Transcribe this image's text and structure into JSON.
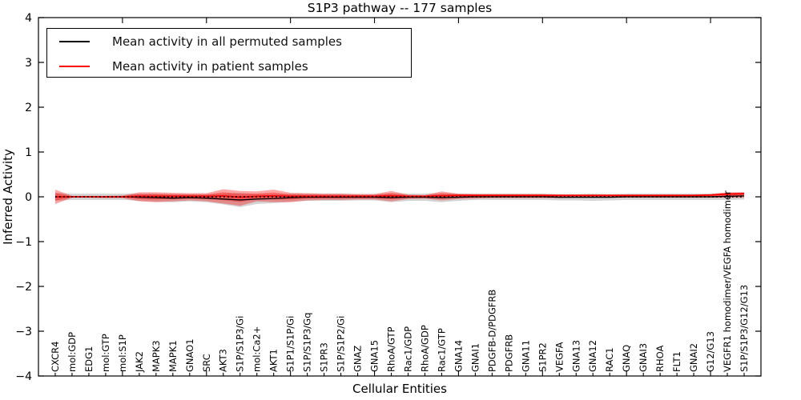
{
  "title": "S1P3 pathway -- 177 samples",
  "legend": {
    "entries": [
      {
        "label": "Mean activity in all permuted samples",
        "color": "#000000"
      },
      {
        "label": "Mean activity in patient samples",
        "color": "#ff0000"
      }
    ],
    "position": "upper left"
  },
  "colors": {
    "permuted_line": "#000000",
    "patient_line": "#ff0000",
    "patient_band": "#ff0000",
    "permuted_band": "#808080",
    "axis": "#000000",
    "background": "#ffffff"
  },
  "chart_data": {
    "type": "line",
    "title": "S1P3 pathway -- 177 samples",
    "xlabel": "Cellular Entities",
    "ylabel": "Inferred Activity",
    "ylim": [
      -4,
      4
    ],
    "yticks": [
      4,
      3,
      2,
      1,
      0,
      -1,
      -2,
      -3,
      -4
    ],
    "x_major_tick_step": 5,
    "grid": false,
    "baseline": {
      "value": 0,
      "style": "dotted",
      "color": "#000000"
    },
    "categories": [
      "CXCR4",
      "mol:GDP",
      "EDG1",
      "mol:GTP",
      "mol:S1P",
      "JAK2",
      "MAPK3",
      "MAPK1",
      "GNAO1",
      "SRC",
      "AKT3",
      "S1P/S1P3/Gi",
      "mol:Ca2+",
      "AKT1",
      "S1P1/S1P/Gi",
      "S1P/S1P3/Gq",
      "S1PR3",
      "S1P/S1P2/Gi",
      "GNAZ",
      "GNA15",
      "RhoA/GTP",
      "Rac1/GDP",
      "RhoA/GDP",
      "Rac1/GTP",
      "GNA14",
      "GNAI1",
      "PDGFB-D/PDGFRB",
      "PDGFRB",
      "GNA11",
      "S1PR2",
      "VEGFA",
      "GNA13",
      "GNA12",
      "RAC1",
      "GNAQ",
      "GNAI3",
      "RHOA",
      "FLT1",
      "GNAI2",
      "G12/G13",
      "VEGFR1 homodimer/VEGFA homodimer",
      "S1P/S1P3/G12/G13"
    ],
    "series": [
      {
        "name": "Mean activity in all permuted samples",
        "color": "#000000",
        "style": "solid",
        "values": [
          0,
          0,
          0,
          0,
          0,
          -0.01,
          -0.02,
          -0.03,
          -0.02,
          -0.03,
          -0.05,
          -0.07,
          -0.05,
          -0.04,
          -0.02,
          -0.01,
          -0.01,
          -0.01,
          -0.01,
          -0.01,
          -0.02,
          -0.01,
          -0.01,
          -0.02,
          -0.01,
          0,
          0,
          0,
          0,
          0,
          -0.01,
          -0.01,
          -0.01,
          -0.01,
          0,
          0,
          0,
          0,
          0,
          0,
          0.01,
          0.02
        ]
      },
      {
        "name": "Mean activity in patient samples",
        "color": "#ff0000",
        "style": "solid",
        "values": [
          0,
          0,
          0,
          0,
          0,
          0.01,
          0.01,
          0.01,
          0.01,
          0.01,
          0.02,
          -0.01,
          0.01,
          0.02,
          0.01,
          0.01,
          0.01,
          0.01,
          0.01,
          0.01,
          0.02,
          0.01,
          0.01,
          0.02,
          0.03,
          0.03,
          0.03,
          0.03,
          0.03,
          0.03,
          0.03,
          0.03,
          0.03,
          0.03,
          0.03,
          0.03,
          0.03,
          0.03,
          0.03,
          0.04,
          0.06,
          0.07
        ]
      }
    ],
    "bands": [
      {
        "name": "permuted activity range",
        "color": "#808080",
        "opacity": 0.35,
        "center_series": 0,
        "half_width": [
          0.09,
          0.07,
          0.07,
          0.07,
          0.07,
          0.08,
          0.09,
          0.09,
          0.08,
          0.09,
          0.12,
          0.16,
          0.11,
          0.1,
          0.09,
          0.08,
          0.08,
          0.08,
          0.07,
          0.07,
          0.1,
          0.08,
          0.08,
          0.1,
          0.08,
          0.07,
          0.07,
          0.07,
          0.07,
          0.07,
          0.07,
          0.07,
          0.08,
          0.07,
          0.07,
          0.07,
          0.07,
          0.07,
          0.07,
          0.07,
          0.08,
          0.08
        ]
      },
      {
        "name": "patient activity range",
        "color": "#ff0000",
        "opacity": 0.35,
        "upper": [
          0.16,
          0.02,
          0.02,
          0.02,
          0.03,
          0.1,
          0.1,
          0.09,
          0.08,
          0.08,
          0.17,
          0.13,
          0.12,
          0.16,
          0.09,
          0.08,
          0.07,
          0.07,
          0.06,
          0.06,
          0.13,
          0.05,
          0.04,
          0.12,
          0.07,
          0.06,
          0.06,
          0.06,
          0.06,
          0.06,
          0.05,
          0.05,
          0.05,
          0.05,
          0.05,
          0.05,
          0.05,
          0.05,
          0.05,
          0.06,
          0.1,
          0.1
        ],
        "lower": [
          -0.16,
          -0.02,
          -0.02,
          -0.03,
          -0.03,
          -0.1,
          -0.12,
          -0.1,
          -0.08,
          -0.1,
          -0.15,
          -0.2,
          -0.1,
          -0.12,
          -0.12,
          -0.08,
          -0.07,
          -0.07,
          -0.06,
          -0.06,
          -0.1,
          -0.05,
          -0.04,
          -0.08,
          -0.05,
          -0.04,
          -0.03,
          -0.03,
          -0.03,
          -0.03,
          -0.03,
          -0.02,
          -0.02,
          -0.02,
          -0.02,
          -0.02,
          -0.02,
          -0.02,
          -0.02,
          -0.02,
          -0.02,
          -0.02
        ]
      }
    ]
  }
}
